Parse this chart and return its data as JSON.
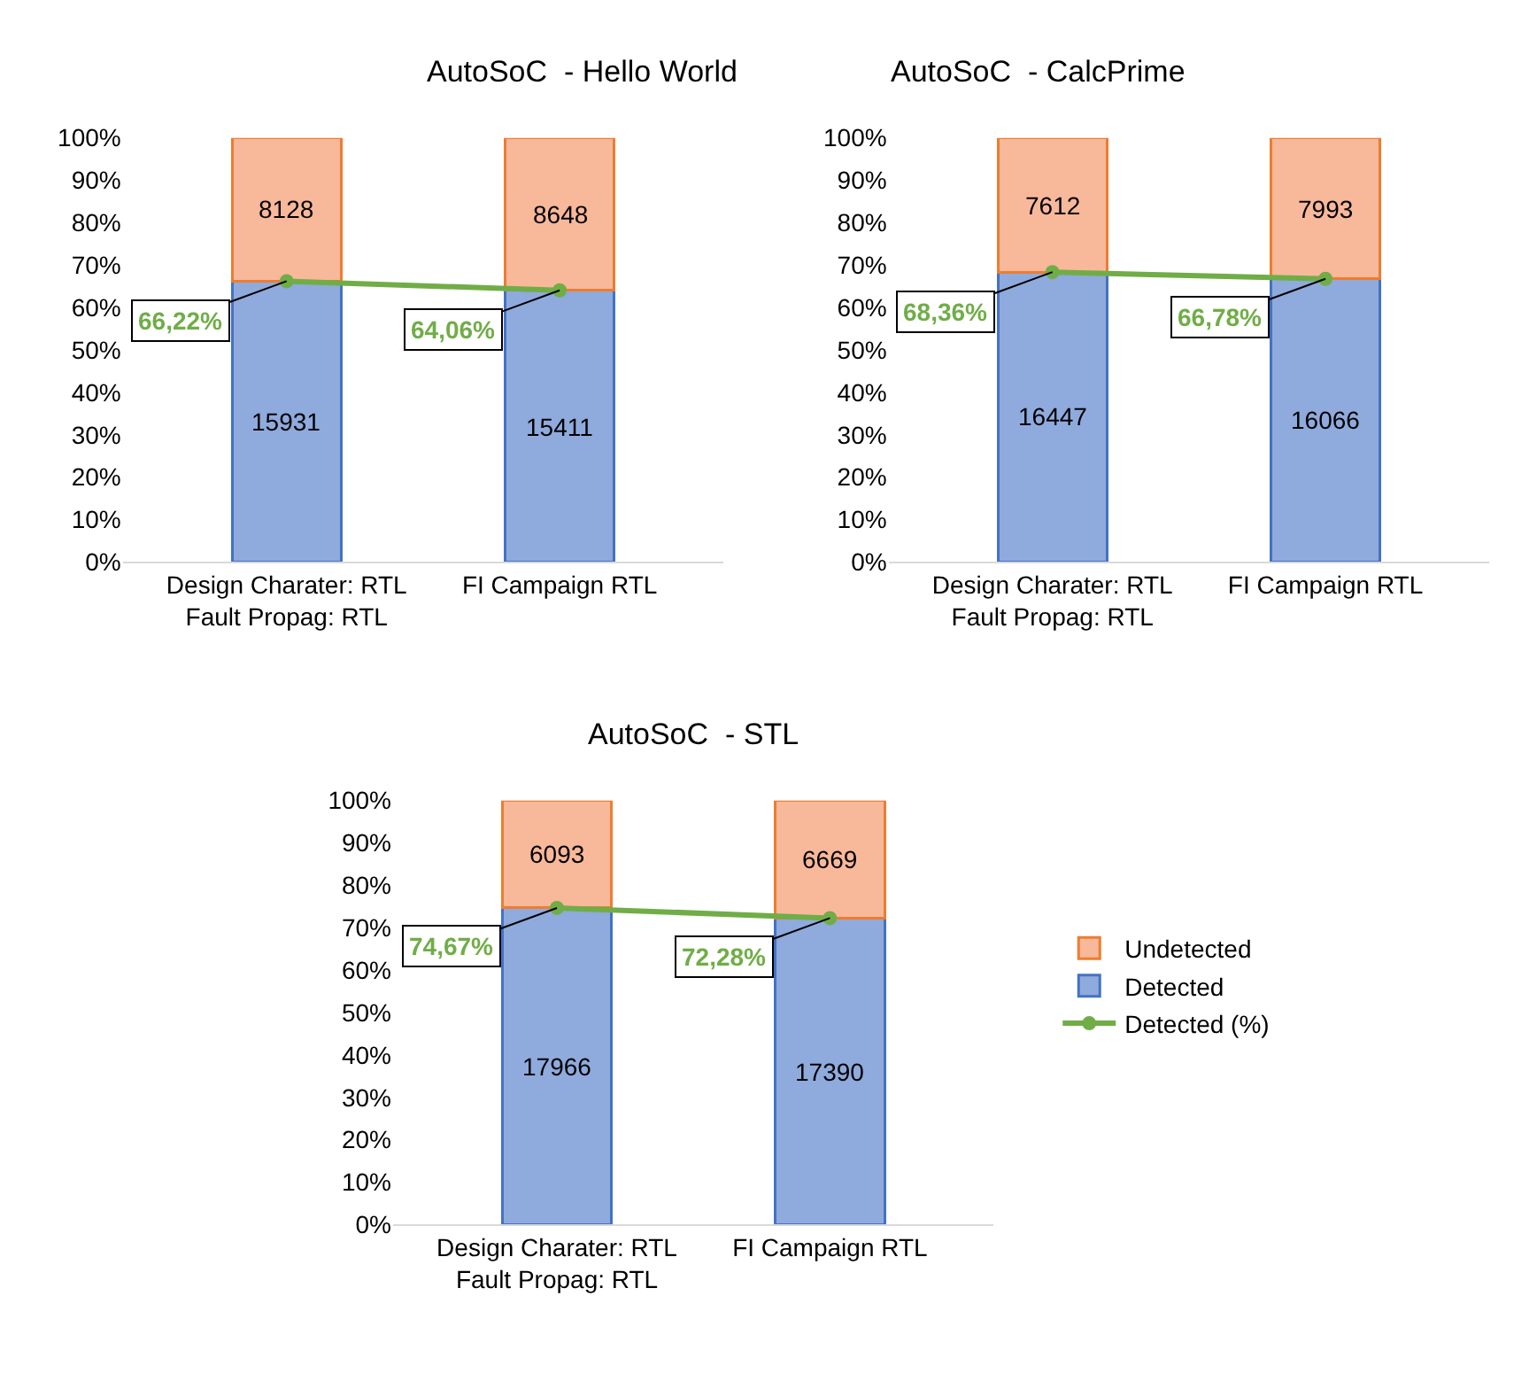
{
  "chart_data": [
    {
      "type": "bar",
      "title": "AutoSoC  - Hello World",
      "stacked": true,
      "categories": [
        "Design Charater: RTL\nFault Propag: RTL",
        "FI Campaign RTL"
      ],
      "ylim": [
        0,
        100
      ],
      "yticks": [
        {
          "value": 0,
          "label": "0%"
        },
        {
          "value": 10,
          "label": "10%"
        },
        {
          "value": 20,
          "label": "20%"
        },
        {
          "value": 30,
          "label": "30%"
        },
        {
          "value": 40,
          "label": "40%"
        },
        {
          "value": 50,
          "label": "50%"
        },
        {
          "value": 60,
          "label": "60%"
        },
        {
          "value": 70,
          "label": "70%"
        },
        {
          "value": 80,
          "label": "80%"
        },
        {
          "value": 90,
          "label": "90%"
        },
        {
          "value": 100,
          "label": "100%"
        }
      ],
      "grid": false,
      "legend": "right",
      "marker": "circle",
      "series": [
        {
          "name": "Detected",
          "color": "#8faadc",
          "values": [
            66.22,
            64.06
          ]
        },
        {
          "name": "Undetected",
          "color": "#f8b89a",
          "values": [
            33.78,
            35.94
          ]
        },
        {
          "name": "Detected (%)",
          "type": "line",
          "color": "#70ad47",
          "values": [
            66.22,
            64.06
          ],
          "value_labels": [
            "66,22%",
            "64,06%"
          ]
        }
      ],
      "annotations": [
        "15931",
        "15411",
        "8128",
        "8648"
      ]
    },
    {
      "type": "bar",
      "title": "AutoSoC  - CalcPrime",
      "stacked": true,
      "categories": [
        "Design Charater: RTL\nFault Propag: RTL",
        "FI Campaign RTL"
      ],
      "ylim": [
        0,
        100
      ],
      "yticks": [
        {
          "value": 0,
          "label": "0%"
        },
        {
          "value": 10,
          "label": "10%"
        },
        {
          "value": 20,
          "label": "20%"
        },
        {
          "value": 30,
          "label": "30%"
        },
        {
          "value": 40,
          "label": "40%"
        },
        {
          "value": 50,
          "label": "50%"
        },
        {
          "value": 60,
          "label": "60%"
        },
        {
          "value": 70,
          "label": "70%"
        },
        {
          "value": 80,
          "label": "80%"
        },
        {
          "value": 90,
          "label": "90%"
        },
        {
          "value": 100,
          "label": "100%"
        }
      ],
      "grid": false,
      "marker": "circle",
      "series": [
        {
          "color": "#8faadc",
          "values": [
            68.36,
            66.78
          ]
        },
        {
          "color": "#f8b89a",
          "values": [
            31.64,
            33.22
          ]
        },
        {
          "type": "line",
          "color": "#70ad47",
          "values": [
            68.36,
            66.78
          ],
          "value_labels": [
            "68,36%",
            "66,78%"
          ]
        }
      ],
      "annotations": [
        "16447",
        "16066",
        "7612",
        "7993"
      ]
    },
    {
      "type": "bar",
      "title": "AutoSoC  - STL",
      "stacked": true,
      "categories": [
        "Design Charater: RTL\nFault Propag: RTL",
        "FI Campaign RTL"
      ],
      "ylim": [
        0,
        100
      ],
      "yticks": [
        {
          "value": 0,
          "label": "0%"
        },
        {
          "value": 10,
          "label": "10%"
        },
        {
          "value": 20,
          "label": "20%"
        },
        {
          "value": 30,
          "label": "30%"
        },
        {
          "value": 40,
          "label": "40%"
        },
        {
          "value": 50,
          "label": "50%"
        },
        {
          "value": 60,
          "label": "60%"
        },
        {
          "value": 70,
          "label": "70%"
        },
        {
          "value": 80,
          "label": "80%"
        },
        {
          "value": 90,
          "label": "90%"
        },
        {
          "value": 100,
          "label": "100%"
        }
      ],
      "grid": false,
      "marker": "circle",
      "series": [
        {
          "color": "#8faadc",
          "values": [
            74.67,
            72.28
          ]
        },
        {
          "color": "#f8b89a",
          "values": [
            25.33,
            27.72
          ]
        },
        {
          "type": "line",
          "color": "#70ad47",
          "values": [
            74.67,
            72.28
          ],
          "value_labels": [
            "74,67%",
            "72,28%"
          ]
        }
      ],
      "annotations": [
        "17966",
        "17390",
        "6093",
        "6669"
      ]
    }
  ]
}
